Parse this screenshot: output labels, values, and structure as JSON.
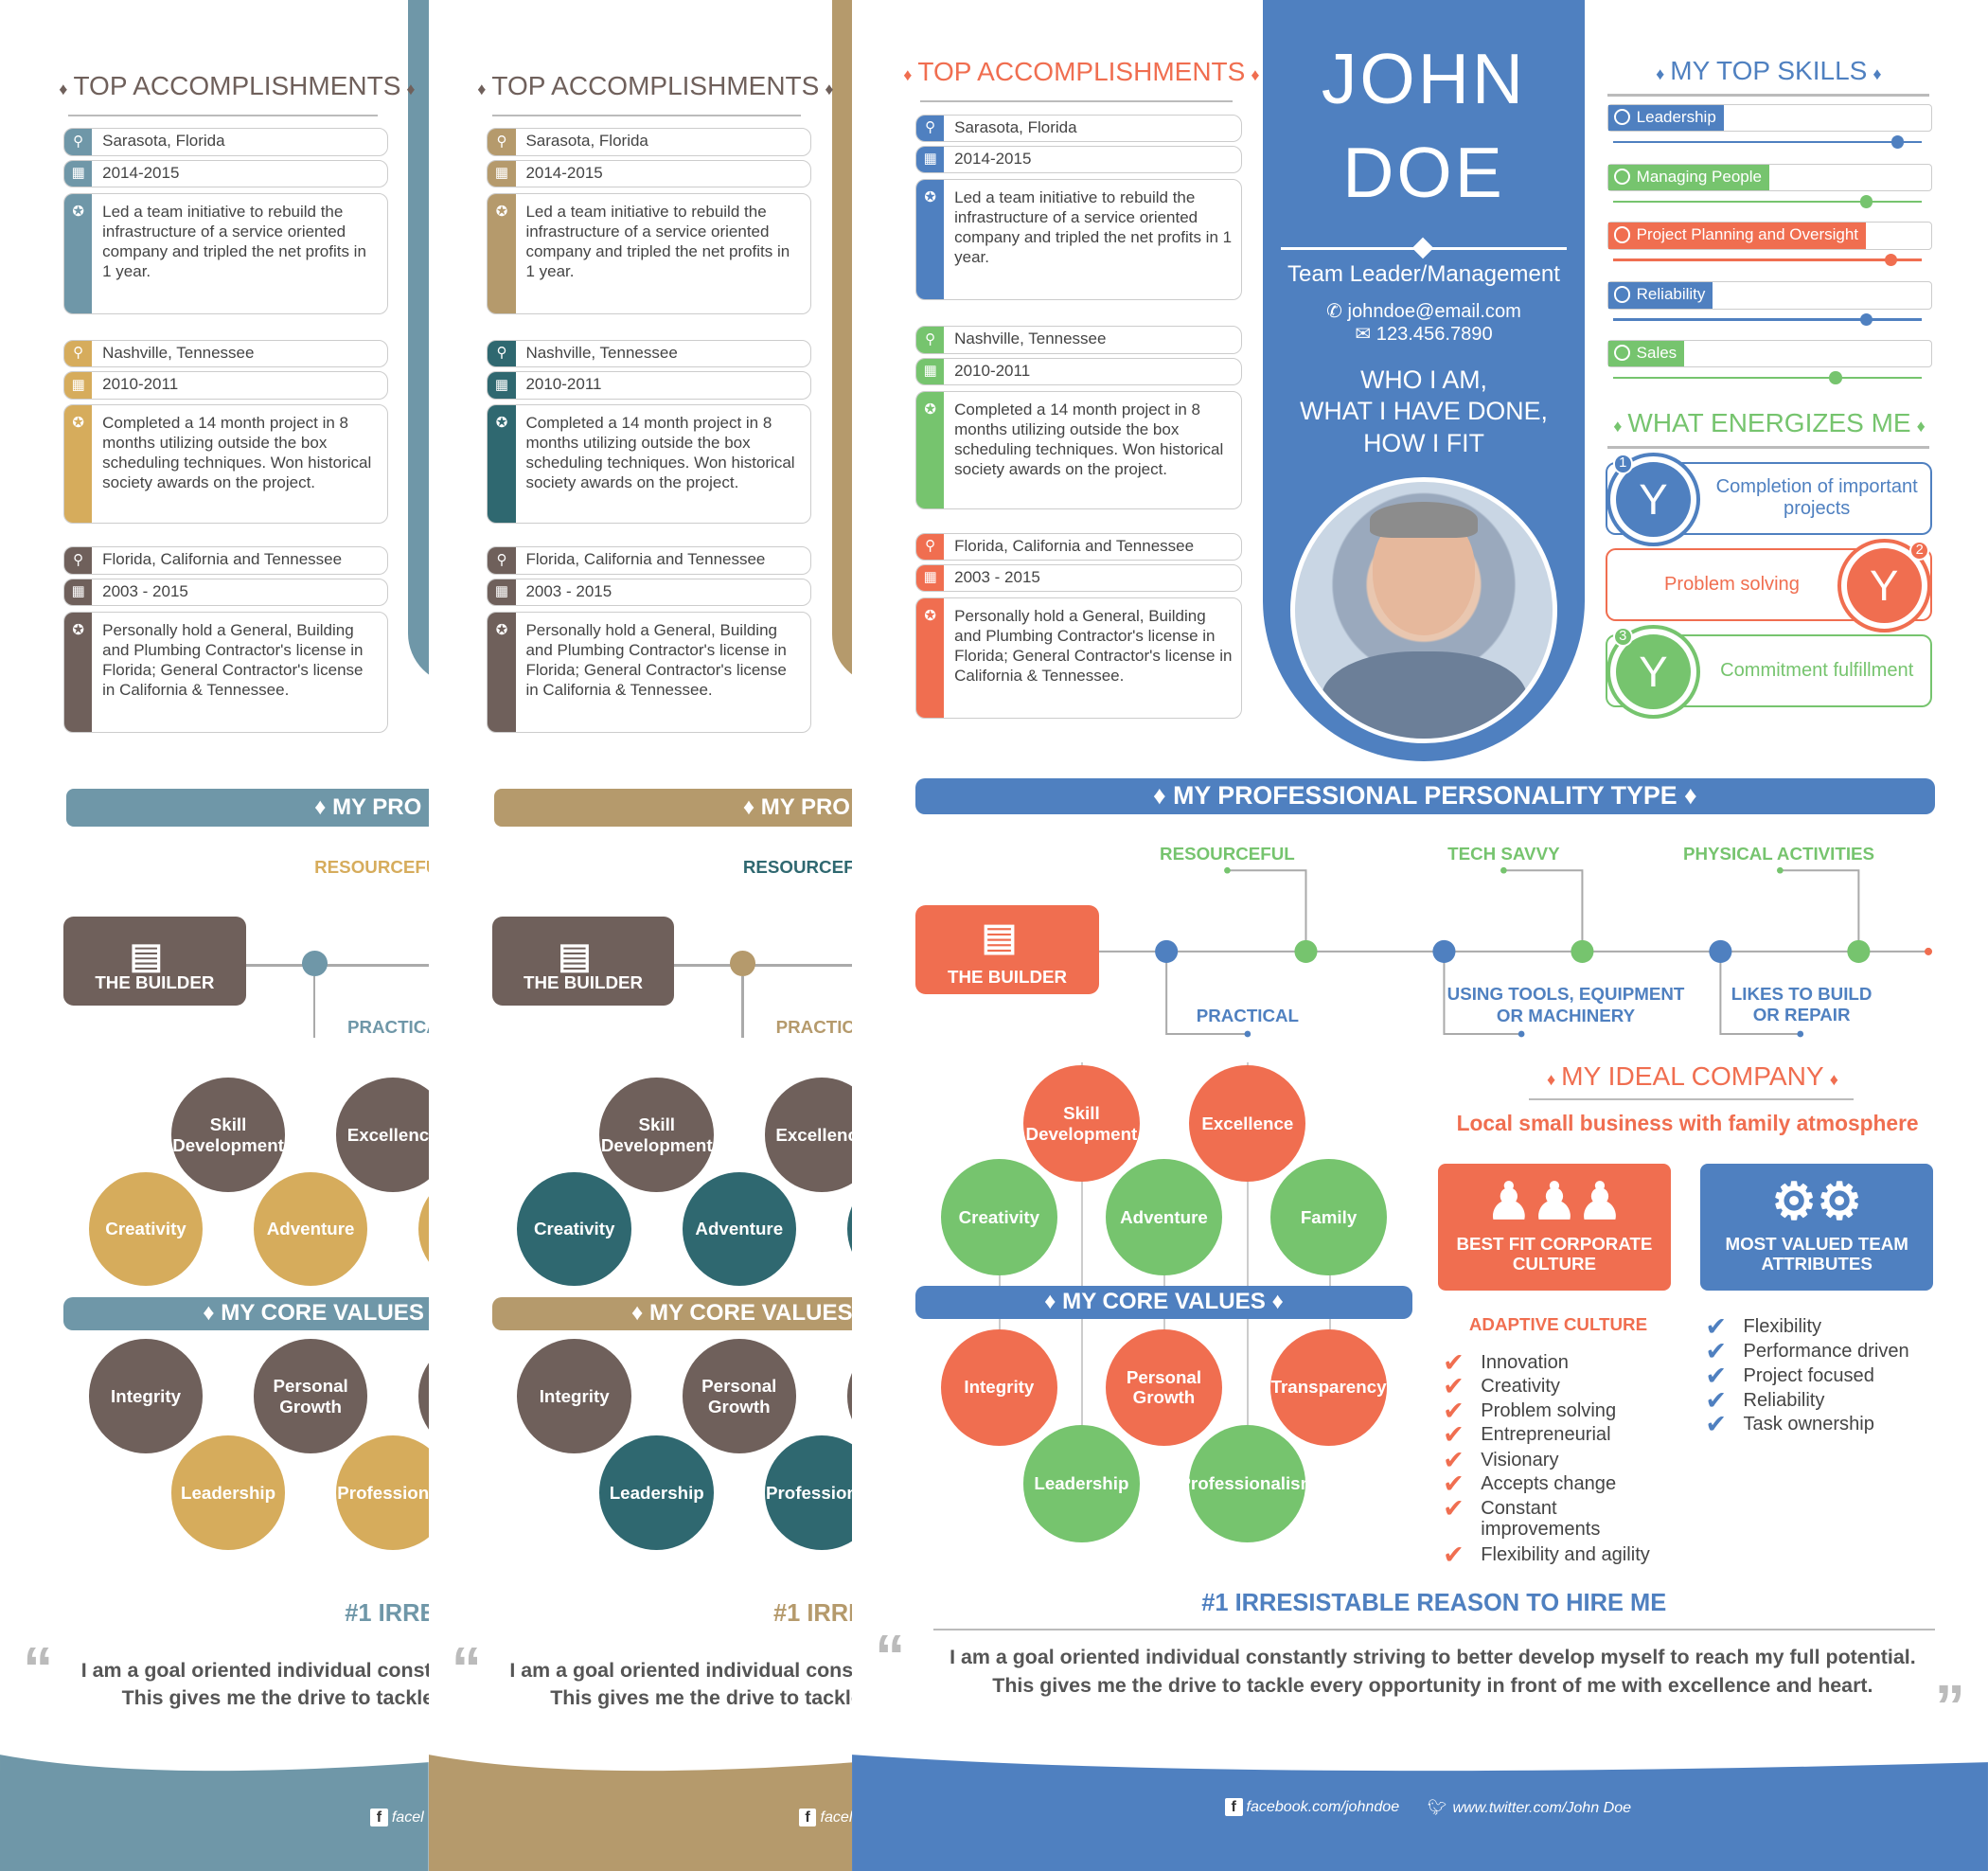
{
  "colors": {
    "blue": "#4f80c0",
    "orange": "#f06e50",
    "green": "#76c46e",
    "gray_brown": "#6f605b",
    "steel": "#6f97a8",
    "tan": "#b59a6c",
    "mustard": "#d6ac5c",
    "teal": "#2f6870"
  },
  "profile": {
    "first_name": "JOHN",
    "last_name": "DOE",
    "role": "Team Leader/Management",
    "email": "johndoe@email.com",
    "phone": "123.456.7890",
    "tagline": [
      "WHO I AM,",
      "WHAT I HAVE DONE,",
      "HOW I FIT"
    ]
  },
  "accomplishments": {
    "title": "TOP ACCOMPLISHMENTS",
    "items": [
      {
        "location": "Sarasota, Florida",
        "years": "2014-2015",
        "desc": "Led a team initiative to rebuild the infrastructure of a service oriented company and tripled the net profits in 1 year."
      },
      {
        "location": "Nashville, Tennessee",
        "years": "2010-2011",
        "desc": "Completed a 14 month project in 8 months utilizing outside the box scheduling techniques. Won historical society awards on the project."
      },
      {
        "location": "Florida, California and Tennessee",
        "years": "2003 - 2015",
        "desc": "Personally hold a General, Building and Plumbing Contractor's license in Florida; General Contractor's license in California & Tennessee."
      }
    ]
  },
  "skills": {
    "title": "MY TOP SKILLS",
    "items": [
      {
        "label": "Leadership",
        "level": 0.92,
        "color": "#4f80c0"
      },
      {
        "label": "Managing People",
        "level": 0.82,
        "color": "#76c46e"
      },
      {
        "label": "Project Planning and Oversight",
        "level": 0.9,
        "color": "#f06e50"
      },
      {
        "label": "Reliability",
        "level": 0.82,
        "color": "#4f80c0"
      },
      {
        "label": "Sales",
        "level": 0.72,
        "color": "#76c46e"
      }
    ]
  },
  "energizes": {
    "title": "WHAT ENERGIZES ME",
    "items": [
      {
        "num": "1",
        "text": "Completion of important projects"
      },
      {
        "num": "2",
        "text": "Problem solving"
      },
      {
        "num": "3",
        "text": "Commitment fulfillment"
      }
    ]
  },
  "personality": {
    "title": "MY PROFESSIONAL PERSONALITY TYPE",
    "type": "THE BUILDER",
    "top_labels": [
      "RESOURCEFUL",
      "TECH SAVVY",
      "PHYSICAL ACTIVITIES"
    ],
    "bottom_labels": [
      "PRACTICAL",
      "USING TOOLS, EQUIPMENT",
      "OR MACHINERY",
      "LIKES TO BUILD",
      "OR REPAIR"
    ]
  },
  "core_values": {
    "title": "MY CORE VALUES",
    "top": [
      "Skill Development",
      "Excellence",
      "Creativity",
      "Adventure",
      "Family"
    ],
    "bottom": [
      "Integrity",
      "Personal Growth",
      "Transparency",
      "Leadership",
      "Professionalism"
    ]
  },
  "ideal_company": {
    "title": "MY IDEAL COMPANY",
    "subtitle": "Local small business with family atmosphere",
    "culture_card": "BEST FIT CORPORATE CULTURE",
    "attributes_card": "MOST VALUED TEAM ATTRIBUTES",
    "culture_heading": "ADAPTIVE CULTURE",
    "culture_items": [
      "Innovation",
      "Creativity",
      "Problem solving",
      "Entrepreneurial",
      "Visionary",
      "Accepts change",
      "Constant improvements",
      "Flexibility and agility"
    ],
    "attributes": [
      "Flexibility",
      "Performance driven",
      "Project focused",
      "Reliability",
      "Task ownership"
    ]
  },
  "reason": {
    "title": "#1 IRRESISTABLE REASON TO HIRE ME",
    "line1": "I am a goal oriented individual constantly striving to better develop myself to reach my full potential.",
    "line2": "This gives me the drive to tackle every opportunity in front of me with excellence and heart.",
    "title_partial": "#1 IRRE",
    "line1_partial": "I am a goal oriented individual const",
    "line2_partial": "This gives me the drive to tackle"
  },
  "footer": {
    "facebook": "facebook.com/johndoe",
    "twitter": "www.twitter.com/John Doe",
    "facebook_partial": "facel"
  },
  "partials": {
    "personality_title": "MY PRO",
    "resourceful": "RESOURCEFUL",
    "practical": "PRACTICA",
    "excellence": "Excellence",
    "professionalism": "Professionali"
  }
}
